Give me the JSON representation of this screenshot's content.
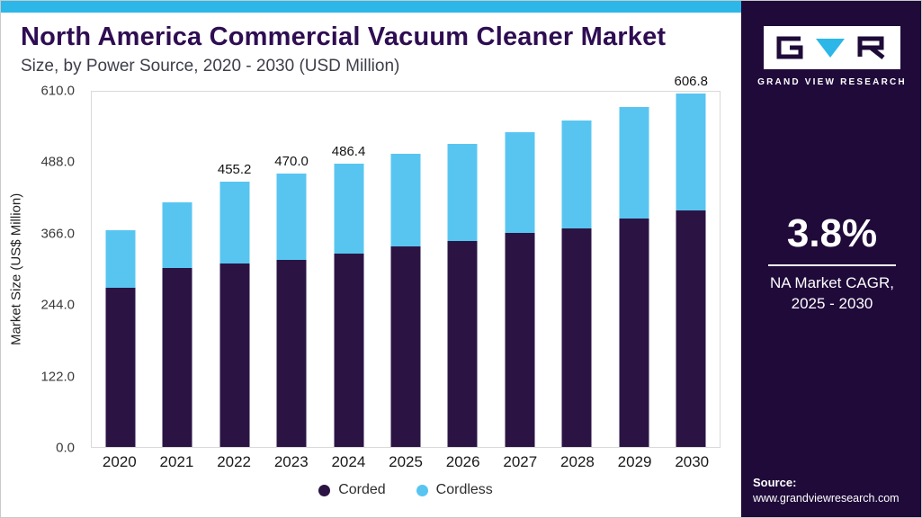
{
  "colors": {
    "accent_cyan": "#2CB7E8",
    "corded": "#2B1444",
    "cordless": "#58C5F1",
    "sidebar_bg": "#1F0A3A",
    "title": "#2F0D52",
    "subtitle": "#3E3E4A"
  },
  "header": {
    "title": "North America Commercial Vacuum Cleaner Market",
    "subtitle": "Size, by Power Source, 2020 - 2030 (USD Million)"
  },
  "chart_data": {
    "type": "bar",
    "stacked": true,
    "title": "North America Commercial Vacuum Cleaner Market Size, by Power Source, 2020 - 2030 (USD Million)",
    "ylabel": "Market Size (US$ Million)",
    "ylim": [
      0,
      610
    ],
    "yticks": [
      "610.0",
      "488.0",
      "366.0",
      "244.0",
      "122.0",
      "0.0"
    ],
    "grid": false,
    "categories": [
      "2020",
      "2021",
      "2022",
      "2023",
      "2024",
      "2025",
      "2026",
      "2027",
      "2028",
      "2029",
      "2030"
    ],
    "series": [
      {
        "name": "Corded",
        "color": "#2B1444",
        "values": [
          273,
          307,
          315,
          321,
          332,
          344,
          353,
          367,
          375,
          392,
          406
        ]
      },
      {
        "name": "Cordless",
        "color": "#58C5F1",
        "values": [
          99,
          113,
          140.2,
          149,
          154.4,
          160,
          168,
          174,
          186,
          191,
          200.8
        ]
      }
    ],
    "totals": [
      372,
      420,
      455.2,
      470.0,
      486.4,
      504,
      521,
      541,
      561,
      583,
      606.8
    ],
    "total_labels": [
      "",
      "",
      "455.2",
      "470.0",
      "486.4",
      "",
      "",
      "",
      "",
      "",
      "606.8"
    ],
    "legend": [
      "Corded",
      "Cordless"
    ],
    "legend_position": "bottom"
  },
  "sidebar": {
    "logo_caption": "GRAND VIEW RESEARCH",
    "cagr_value": "3.8%",
    "cagr_line1": "NA Market CAGR,",
    "cagr_line2": "2025 - 2030",
    "source_label": "Source:",
    "source_url": "www.grandviewresearch.com"
  }
}
